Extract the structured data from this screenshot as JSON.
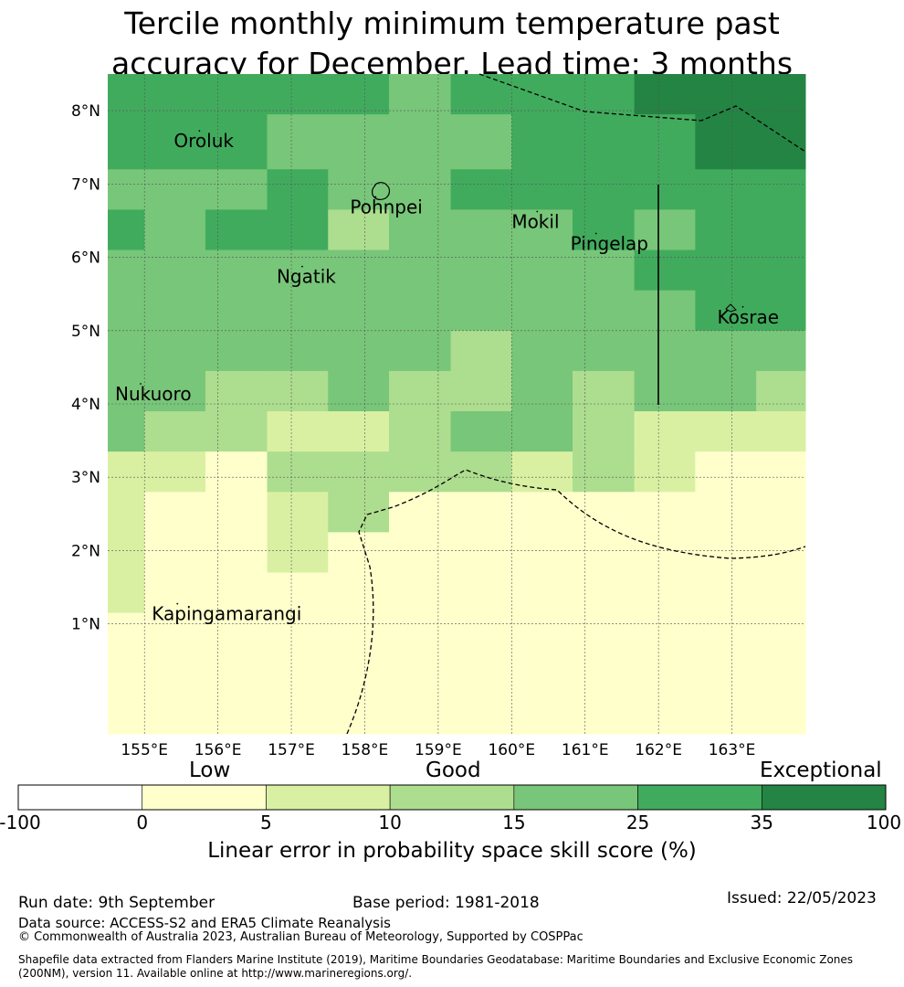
{
  "title": [
    "Tercile monthly minimum temperature past",
    "accuracy for December. Lead time: 3 months"
  ],
  "map": {
    "lon_range": [
      154.5,
      164.0
    ],
    "lat_range": [
      -0.5,
      8.5
    ],
    "lon_ticks": [
      "155°E",
      "156°E",
      "157°E",
      "158°E",
      "159°E",
      "160°E",
      "161°E",
      "162°E",
      "163°E"
    ],
    "lat_ticks": [
      "1°N",
      "2°N",
      "3°N",
      "4°N",
      "5°N",
      "6°N",
      "7°N",
      "8°N"
    ],
    "grid": true,
    "skill_grid": {
      "comment_free": true,
      "row_lats_top": [
        8.5,
        8.3,
        7.95,
        7.2,
        6.65,
        6.1,
        5.55,
        5.0,
        4.45,
        3.9,
        3.35,
        2.8,
        2.25,
        1.7,
        1.15,
        0.6,
        0.05
      ],
      "col_lons_left": [
        154.5,
        155.0,
        155.83,
        156.67,
        157.5,
        158.33,
        159.17,
        160.0,
        160.83,
        161.67,
        162.5,
        163.33
      ],
      "levels": [
        [
          4,
          4,
          4,
          4,
          4,
          3,
          4,
          4,
          4,
          5,
          5,
          5
        ],
        [
          4,
          4,
          4,
          4,
          4,
          3,
          4,
          4,
          4,
          5,
          5,
          5
        ],
        [
          4,
          4,
          4,
          3,
          3,
          3,
          3,
          4,
          4,
          4,
          5,
          5
        ],
        [
          3,
          3,
          3,
          4,
          3,
          3,
          4,
          4,
          4,
          4,
          4,
          4
        ],
        [
          4,
          3,
          4,
          4,
          2,
          3,
          3,
          3,
          4,
          3,
          4,
          4
        ],
        [
          3,
          3,
          3,
          3,
          3,
          3,
          3,
          3,
          3,
          4,
          4,
          4
        ],
        [
          3,
          3,
          3,
          3,
          3,
          3,
          3,
          3,
          3,
          3,
          4,
          4
        ],
        [
          3,
          3,
          3,
          3,
          3,
          3,
          2,
          3,
          3,
          3,
          3,
          3
        ],
        [
          3,
          3,
          2,
          2,
          3,
          2,
          2,
          3,
          2,
          3,
          3,
          2
        ],
        [
          3,
          2,
          2,
          1,
          1,
          2,
          3,
          3,
          2,
          1,
          1,
          1
        ],
        [
          1,
          1,
          0,
          2,
          2,
          2,
          2,
          1,
          2,
          1,
          0,
          0
        ],
        [
          1,
          0,
          0,
          1,
          2,
          0,
          0,
          0,
          0,
          0,
          0,
          0
        ],
        [
          1,
          0,
          0,
          1,
          0,
          0,
          0,
          0,
          0,
          0,
          0,
          0
        ],
        [
          1,
          0,
          0,
          0,
          0,
          0,
          0,
          0,
          0,
          0,
          0,
          0
        ],
        [
          0,
          0,
          0,
          0,
          0,
          0,
          0,
          0,
          0,
          0,
          0,
          0
        ],
        [
          0,
          0,
          0,
          0,
          0,
          0,
          0,
          0,
          0,
          0,
          0,
          0
        ],
        [
          0,
          0,
          0,
          0,
          0,
          0,
          0,
          0,
          0,
          0,
          0,
          0
        ]
      ]
    },
    "islands": [
      {
        "name": "Oroluk",
        "lon": 155.4,
        "lat": 7.5
      },
      {
        "name": "Pohnpei",
        "lon": 157.8,
        "lat": 6.6
      },
      {
        "name": "Mokil",
        "lon": 160.0,
        "lat": 6.4
      },
      {
        "name": "Pingelap",
        "lon": 160.8,
        "lat": 6.1
      },
      {
        "name": "Ngatik",
        "lon": 156.8,
        "lat": 5.65
      },
      {
        "name": "Kosrae",
        "lon": 162.8,
        "lat": 5.1
      },
      {
        "name": "Nukuoro",
        "lon": 154.6,
        "lat": 4.05
      },
      {
        "name": "Kapingamarangi",
        "lon": 155.1,
        "lat": 1.05
      }
    ]
  },
  "colorbar": {
    "colors": [
      "#ffffff",
      "#ffffcc",
      "#d9f0a3",
      "#addd8e",
      "#78c679",
      "#41ab5d",
      "#238443"
    ],
    "boundaries": [
      "-100",
      "0",
      "5",
      "10",
      "15",
      "25",
      "35",
      "100"
    ],
    "categories": [
      "Low",
      "Good",
      "Exceptional"
    ],
    "label": "Linear error in probability space skill score (%)"
  },
  "footer": {
    "run_date": "Run date: 9th September",
    "base_period": "Base period: 1981-2018",
    "issued": "Issued: 22/05/2023",
    "data_source": "Data source: ACCESS-S2 and ERA5 Climate Reanalysis",
    "copyright": "© Commonwealth of Australia 2023, Australian Bureau of Meteorology, Supported by COSPPac",
    "shapefile_line1": "Shapefile data extracted from Flanders Marine Institute (2019), Maritime Boundaries Geodatabase: Maritime Boundaries and Exclusive Economic Zones",
    "shapefile_line2": "(200NM), version 11. Available online at http://www.marineregions.org/."
  }
}
